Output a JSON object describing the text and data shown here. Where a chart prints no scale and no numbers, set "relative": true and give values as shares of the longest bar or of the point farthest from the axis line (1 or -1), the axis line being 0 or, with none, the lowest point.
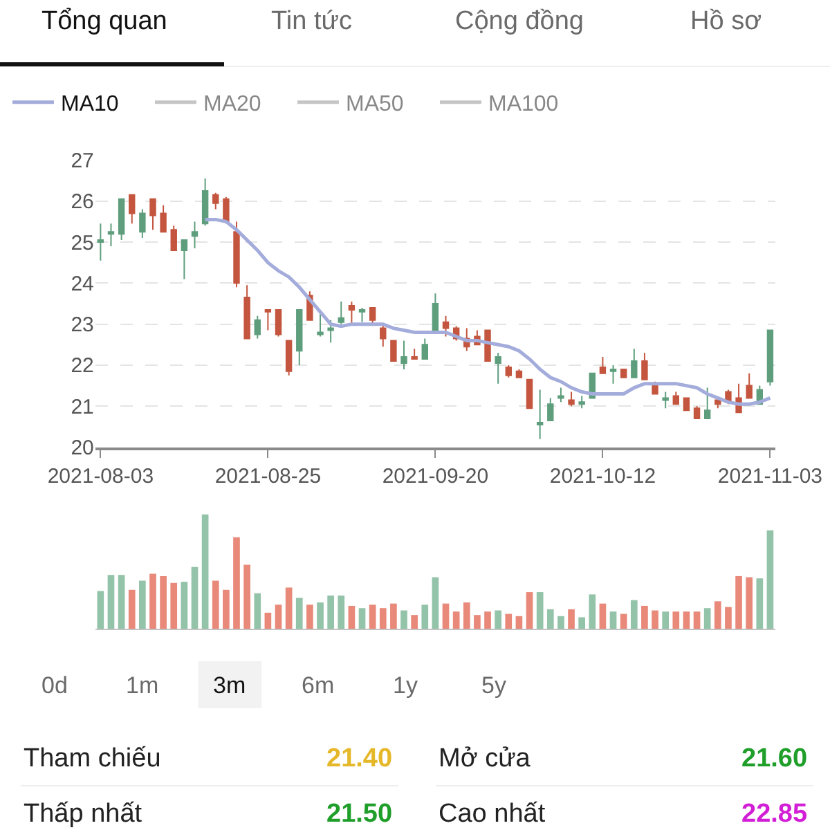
{
  "chart_data": [
    {
      "type": "other",
      "annotations": [
        "Tổng quan",
        "Tin tức",
        "Cộng đồng",
        "Hồ sơ"
      ]
    },
    {
      "type": "candlestick",
      "categories": [
        "2021-08-03",
        null,
        null,
        null,
        null,
        null,
        null,
        null,
        null,
        null,
        null,
        null,
        null,
        null,
        null,
        null,
        "2021-08-25",
        null,
        null,
        null,
        null,
        null,
        null,
        null,
        null,
        null,
        null,
        null,
        null,
        null,
        null,
        null,
        "2021-09-20",
        null,
        null,
        null,
        null,
        null,
        null,
        null,
        null,
        null,
        null,
        null,
        null,
        null,
        null,
        null,
        "2021-10-12",
        null,
        null,
        null,
        null,
        null,
        null,
        null,
        null,
        null,
        null,
        null,
        null,
        null,
        null,
        null,
        "2021-11-03"
      ],
      "ohlc": [
        [
          25.0,
          25.45,
          24.55,
          25.05
        ],
        [
          25.2,
          25.45,
          24.9,
          25.25
        ],
        [
          25.2,
          26.05,
          25.05,
          26.05
        ],
        [
          26.15,
          26.15,
          25.45,
          25.7
        ],
        [
          25.25,
          25.8,
          25.1,
          25.7
        ],
        [
          26.05,
          26.05,
          25.3,
          25.65
        ],
        [
          25.7,
          25.9,
          25.25,
          25.25
        ],
        [
          25.3,
          25.4,
          24.8,
          24.8
        ],
        [
          24.8,
          25.05,
          24.1,
          25.05
        ],
        [
          25.15,
          25.5,
          24.85,
          25.25
        ],
        [
          25.45,
          26.55,
          25.4,
          26.25
        ],
        [
          26.15,
          26.2,
          25.8,
          25.95
        ],
        [
          26.05,
          26.1,
          25.45,
          25.5
        ],
        [
          25.25,
          25.5,
          23.9,
          24.0
        ],
        [
          23.65,
          23.95,
          22.65,
          22.65
        ],
        [
          22.75,
          23.2,
          22.65,
          23.1
        ],
        [
          23.35,
          23.35,
          22.85,
          23.3
        ],
        [
          23.35,
          23.35,
          22.7,
          22.75
        ],
        [
          22.6,
          22.6,
          21.75,
          21.85
        ],
        [
          22.35,
          23.35,
          22.0,
          23.35
        ],
        [
          23.7,
          23.8,
          23.1,
          23.1
        ],
        [
          22.75,
          23.25,
          22.7,
          22.8
        ],
        [
          22.85,
          23.1,
          22.55,
          22.9
        ],
        [
          23.05,
          23.55,
          23.0,
          23.15
        ],
        [
          23.45,
          23.55,
          23.0,
          23.35
        ],
        [
          23.3,
          23.4,
          23.05,
          23.35
        ],
        [
          23.4,
          23.4,
          23.0,
          23.1
        ],
        [
          22.9,
          23.0,
          22.45,
          22.65
        ],
        [
          22.6,
          22.6,
          22.1,
          22.1
        ],
        [
          22.05,
          22.6,
          21.9,
          22.2
        ],
        [
          22.2,
          22.4,
          22.15,
          22.15
        ],
        [
          22.15,
          22.65,
          22.15,
          22.5
        ],
        [
          22.8,
          23.75,
          22.8,
          23.5
        ],
        [
          23.05,
          23.2,
          22.7,
          22.9
        ],
        [
          22.9,
          22.95,
          22.6,
          22.65
        ],
        [
          22.65,
          22.9,
          22.35,
          22.45
        ],
        [
          22.7,
          22.85,
          22.5,
          22.5
        ],
        [
          22.85,
          22.85,
          22.1,
          22.1
        ],
        [
          22.05,
          22.3,
          21.55,
          22.2
        ],
        [
          21.95,
          22.0,
          21.7,
          21.75
        ],
        [
          21.85,
          21.9,
          21.7,
          21.7
        ],
        [
          21.65,
          21.65,
          20.95,
          20.95
        ],
        [
          20.55,
          21.4,
          20.2,
          20.6
        ],
        [
          20.65,
          21.2,
          20.65,
          21.05
        ],
        [
          21.2,
          21.45,
          21.1,
          21.25
        ],
        [
          21.15,
          21.35,
          21.0,
          21.05
        ],
        [
          21.05,
          21.25,
          20.95,
          21.1
        ],
        [
          21.2,
          21.8,
          21.2,
          21.8
        ],
        [
          21.95,
          22.2,
          21.8,
          21.8
        ],
        [
          21.85,
          22.0,
          21.55,
          21.9
        ],
        [
          21.9,
          21.9,
          21.7,
          21.7
        ],
        [
          21.7,
          22.4,
          21.7,
          22.1
        ],
        [
          22.1,
          22.3,
          21.65,
          21.65
        ],
        [
          21.55,
          21.6,
          21.3,
          21.3
        ],
        [
          21.15,
          21.35,
          20.95,
          21.2
        ],
        [
          21.25,
          21.35,
          21.05,
          21.05
        ],
        [
          21.2,
          21.2,
          20.9,
          20.9
        ],
        [
          20.95,
          21.0,
          20.7,
          20.7
        ],
        [
          20.7,
          21.45,
          20.7,
          20.9
        ],
        [
          21.15,
          21.2,
          20.95,
          21.05
        ],
        [
          21.35,
          21.4,
          21.05,
          21.1
        ],
        [
          21.2,
          21.55,
          20.85,
          20.85
        ],
        [
          21.5,
          21.8,
          21.2,
          21.2
        ],
        [
          21.05,
          21.5,
          21.05,
          21.4
        ],
        [
          21.6,
          22.85,
          21.5,
          22.85
        ]
      ],
      "colors": [
        "#5e9e7d",
        "#5e9e7d",
        "#5e9e7d",
        "#c4553e",
        "#5e9e7d",
        "#c4553e",
        "#c4553e",
        "#c4553e",
        "#5e9e7d",
        "#5e9e7d",
        "#5e9e7d",
        "#c4553e",
        "#c4553e",
        "#c4553e",
        "#c4553e",
        "#5e9e7d",
        "#c4553e",
        "#c4553e",
        "#c4553e",
        "#5e9e7d",
        "#c4553e",
        "#5e9e7d",
        "#5e9e7d",
        "#5e9e7d",
        "#c4553e",
        "#5e9e7d",
        "#c4553e",
        "#c4553e",
        "#c4553e",
        "#5e9e7d",
        "#c4553e",
        "#5e9e7d",
        "#5e9e7d",
        "#c4553e",
        "#c4553e",
        "#c4553e",
        "#c4553e",
        "#c4553e",
        "#5e9e7d",
        "#c4553e",
        "#c4553e",
        "#c4553e",
        "#5e9e7d",
        "#5e9e7d",
        "#5e9e7d",
        "#c4553e",
        "#5e9e7d",
        "#5e9e7d",
        "#c4553e",
        "#5e9e7d",
        "#c4553e",
        "#5e9e7d",
        "#c4553e",
        "#c4553e",
        "#5e9e7d",
        "#c4553e",
        "#c4553e",
        "#c4553e",
        "#5e9e7d",
        "#c4553e",
        "#c4553e",
        "#c4553e",
        "#c4553e",
        "#5e9e7d",
        "#5e9e7d"
      ],
      "ylim": [
        20,
        27
      ],
      "yticks": [
        20,
        21,
        22,
        23,
        24,
        25,
        26,
        27
      ],
      "grid": "y",
      "legend": "top left",
      "series": [
        {
          "name": "MA10",
          "type": "line",
          "color": "#a3acdb",
          "values": [
            null,
            null,
            null,
            null,
            null,
            null,
            null,
            null,
            null,
            null,
            25.55,
            25.55,
            25.5,
            25.3,
            25.05,
            24.8,
            24.5,
            24.3,
            24.15,
            23.9,
            23.6,
            23.3,
            23.0,
            22.95,
            23.0,
            23.0,
            23.0,
            23.0,
            22.9,
            22.85,
            22.8,
            22.8,
            22.8,
            22.8,
            22.7,
            22.6,
            22.6,
            22.55,
            22.5,
            22.45,
            22.35,
            22.15,
            21.9,
            21.7,
            21.6,
            21.45,
            21.35,
            21.3,
            21.3,
            21.3,
            21.3,
            21.45,
            21.55,
            21.55,
            21.55,
            21.55,
            21.5,
            21.45,
            21.3,
            21.2,
            21.1,
            21.05,
            21.05,
            21.1,
            21.2
          ]
        },
        {
          "name": "MA20",
          "type": "line",
          "color": "#8c8c8c",
          "values": [
            null,
            null,
            null,
            null,
            null,
            null,
            null,
            null,
            null,
            null,
            null,
            null,
            null,
            null,
            null,
            null,
            null,
            null,
            null,
            null,
            null,
            null,
            null,
            null,
            null,
            null,
            null,
            null,
            null,
            null,
            null,
            null,
            null,
            null,
            null,
            null,
            null,
            null,
            null,
            null,
            null,
            null,
            null,
            null,
            null,
            null,
            null,
            null,
            null,
            null,
            null,
            null,
            null,
            null,
            null,
            null,
            null,
            null,
            null,
            null,
            null,
            null,
            null,
            null,
            null
          ]
        },
        {
          "name": "MA50",
          "type": "line",
          "color": "#8c8c8c",
          "values": [
            null,
            null,
            null,
            null,
            null,
            null,
            null,
            null,
            null,
            null,
            null,
            null,
            null,
            null,
            null,
            null,
            null,
            null,
            null,
            null,
            null,
            null,
            null,
            null,
            null,
            null,
            null,
            null,
            null,
            null,
            null,
            null,
            null,
            null,
            null,
            null,
            null,
            null,
            null,
            null,
            null,
            null,
            null,
            null,
            null,
            null,
            null,
            null,
            null,
            null,
            null,
            null,
            null,
            null,
            null,
            null,
            null,
            null,
            null,
            null,
            null,
            null,
            null,
            null,
            null
          ]
        },
        {
          "name": "MA100",
          "type": "line",
          "color": "#8c8c8c",
          "values": [
            null,
            null,
            null,
            null,
            null,
            null,
            null,
            null,
            null,
            null,
            null,
            null,
            null,
            null,
            null,
            null,
            null,
            null,
            null,
            null,
            null,
            null,
            null,
            null,
            null,
            null,
            null,
            null,
            null,
            null,
            null,
            null,
            null,
            null,
            null,
            null,
            null,
            null,
            null,
            null,
            null,
            null,
            null,
            null,
            null,
            null,
            null,
            null,
            null,
            null,
            null,
            null,
            null,
            null,
            null,
            null,
            null,
            null,
            null,
            null,
            null,
            null,
            null,
            null,
            null
          ]
        }
      ]
    },
    {
      "type": "bar",
      "relative": true,
      "categories": [
        null,
        null,
        null,
        null,
        null,
        null,
        null,
        null,
        null,
        null,
        null,
        null,
        null,
        null,
        null,
        null,
        null,
        null,
        null,
        null,
        null,
        null,
        null,
        null,
        null,
        null,
        null,
        null,
        null,
        null,
        null,
        null,
        null,
        null,
        null,
        null,
        null,
        null,
        null,
        null,
        null,
        null,
        null,
        null,
        null,
        null,
        null,
        null,
        null,
        null,
        null,
        null,
        null,
        null,
        null,
        null,
        null,
        null,
        null,
        null,
        null,
        null,
        null,
        null,
        null
      ],
      "values": [
        0.33,
        0.47,
        0.47,
        0.34,
        0.42,
        0.48,
        0.46,
        0.4,
        0.41,
        0.54,
        1,
        0.42,
        0.34,
        0.8,
        0.56,
        0.31,
        0.14,
        0.21,
        0.36,
        0.27,
        0.21,
        0.23,
        0.29,
        0.29,
        0.2,
        0.18,
        0.21,
        0.18,
        0.22,
        0.16,
        0.12,
        0.21,
        0.45,
        0.22,
        0.15,
        0.23,
        0.12,
        0.15,
        0.16,
        0.13,
        0.11,
        0.32,
        0.32,
        0.17,
        0.11,
        0.17,
        0.1,
        0.3,
        0.22,
        0.15,
        0.13,
        0.25,
        0.2,
        0.16,
        0.15,
        0.15,
        0.15,
        0.15,
        0.18,
        0.24,
        0.19,
        0.46,
        0.45,
        0.44,
        0.86
      ],
      "colors": [
        "#93c3a9",
        "#93c3a9",
        "#93c3a9",
        "#e8897a",
        "#93c3a9",
        "#e8897a",
        "#e8897a",
        "#e8897a",
        "#93c3a9",
        "#93c3a9",
        "#93c3a9",
        "#e8897a",
        "#e8897a",
        "#e8897a",
        "#e8897a",
        "#93c3a9",
        "#e8897a",
        "#e8897a",
        "#e8897a",
        "#93c3a9",
        "#e8897a",
        "#93c3a9",
        "#93c3a9",
        "#93c3a9",
        "#e8897a",
        "#93c3a9",
        "#e8897a",
        "#e8897a",
        "#e8897a",
        "#93c3a9",
        "#e8897a",
        "#93c3a9",
        "#93c3a9",
        "#e8897a",
        "#e8897a",
        "#e8897a",
        "#e8897a",
        "#e8897a",
        "#93c3a9",
        "#e8897a",
        "#e8897a",
        "#e8897a",
        "#93c3a9",
        "#93c3a9",
        "#93c3a9",
        "#e8897a",
        "#93c3a9",
        "#93c3a9",
        "#e8897a",
        "#93c3a9",
        "#e8897a",
        "#93c3a9",
        "#e8897a",
        "#e8897a",
        "#93c3a9",
        "#e8897a",
        "#e8897a",
        "#e8897a",
        "#93c3a9",
        "#e8897a",
        "#e8897a",
        "#e8897a",
        "#e8897a",
        "#93c3a9",
        "#93c3a9"
      ]
    },
    {
      "type": "other",
      "annotations": [
        "0d",
        "1m",
        "3m",
        "6m",
        "1y",
        "5y"
      ]
    },
    {
      "type": "other",
      "annotations": [
        "Tham chiếu",
        "21.40",
        "Mở cửa",
        "21.60",
        "Thấp nhất",
        "21.50",
        "Cao nhất",
        "22.85"
      ],
      "colors": [
        "#222222",
        "#e5b82a",
        "#222222",
        "#1f9e2a",
        "#222222",
        "#1f9e2a",
        "#222222",
        "#d21fd6"
      ]
    }
  ]
}
